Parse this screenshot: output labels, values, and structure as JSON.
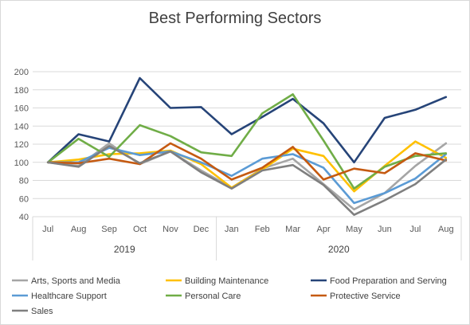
{
  "chart_data": {
    "type": "line",
    "title": "Best Performing Sectors",
    "xlabel": "",
    "ylabel": "",
    "ylim": [
      40,
      200
    ],
    "yticks": [
      40,
      60,
      80,
      100,
      120,
      140,
      160,
      180,
      200
    ],
    "grid": true,
    "legend_position": "bottom",
    "categories": [
      "Jul",
      "Aug",
      "Sep",
      "Oct",
      "Nov",
      "Dec",
      "Jan",
      "Feb",
      "Mar",
      "Apr",
      "May",
      "Jun",
      "Jul",
      "Aug"
    ],
    "year_groups": [
      {
        "label": "2019",
        "start": 0,
        "end": 5
      },
      {
        "label": "2020",
        "start": 6,
        "end": 13
      }
    ],
    "series": [
      {
        "name": "Arts, Sports and Media",
        "color": "#a5a5a5",
        "values": [
          100,
          96,
          121,
          98,
          112,
          91,
          72,
          93,
          104,
          76,
          48,
          66,
          96,
          121
        ]
      },
      {
        "name": "Building Maintenance",
        "color": "#ffc000",
        "values": [
          100,
          103,
          109,
          110,
          113,
          98,
          72,
          92,
          115,
          107,
          68,
          96,
          123,
          105
        ]
      },
      {
        "name": "Food Preparation and Serving",
        "color": "#264478",
        "values": [
          100,
          131,
          123,
          193,
          160,
          161,
          131,
          150,
          170,
          143,
          100,
          149,
          158,
          172
        ]
      },
      {
        "name": "Healthcare Support",
        "color": "#5b9bd5",
        "values": [
          100,
          100,
          116,
          108,
          112,
          100,
          85,
          104,
          109,
          94,
          55,
          66,
          82,
          109
        ]
      },
      {
        "name": "Personal Care",
        "color": "#70ad47",
        "values": [
          100,
          126,
          106,
          141,
          129,
          111,
          107,
          154,
          175,
          124,
          71,
          95,
          107,
          110
        ]
      },
      {
        "name": "Protective Service",
        "color": "#c55a11",
        "values": [
          100,
          99,
          104,
          98,
          121,
          104,
          81,
          94,
          117,
          81,
          93,
          88,
          110,
          102
        ]
      },
      {
        "name": "Sales",
        "color": "#7f7f7f",
        "values": [
          100,
          95,
          118,
          99,
          112,
          89,
          71,
          91,
          97,
          75,
          42,
          58,
          76,
          103
        ]
      }
    ]
  }
}
